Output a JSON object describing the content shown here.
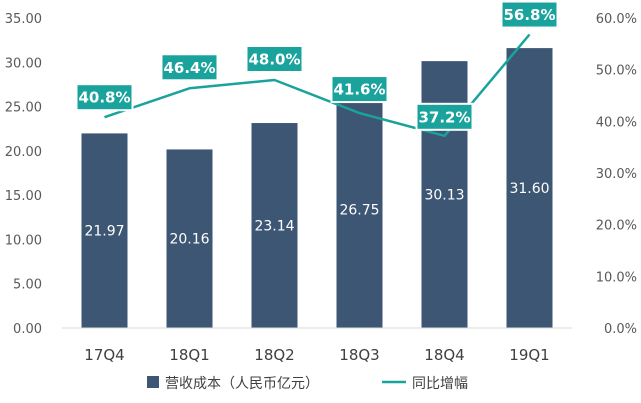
{
  "chart_data": {
    "type": "bar+line",
    "categories": [
      "17Q4",
      "18Q1",
      "18Q2",
      "18Q3",
      "18Q4",
      "19Q1"
    ],
    "series": [
      {
        "name": "营收成本（人民币亿元）",
        "type": "bar",
        "axis": "left",
        "values": [
          21.97,
          20.16,
          23.14,
          26.75,
          30.13,
          31.6
        ],
        "value_labels": [
          "21.97",
          "20.16",
          "23.14",
          "26.75",
          "30.13",
          "31.60"
        ],
        "color": "#3d5673"
      },
      {
        "name": "同比增幅",
        "type": "line",
        "axis": "right",
        "values": [
          40.8,
          46.4,
          48.0,
          41.6,
          37.2,
          56.8
        ],
        "value_labels": [
          "40.8%",
          "46.4%",
          "48.0%",
          "41.6%",
          "37.2%",
          "56.8%"
        ],
        "color": "#1aa39c"
      }
    ],
    "y_left": {
      "ylim": [
        0,
        35
      ],
      "ticks": [
        0,
        5,
        10,
        15,
        20,
        25,
        30,
        35
      ],
      "tick_labels": [
        "0.00",
        "5.00",
        "10.00",
        "15.00",
        "20.00",
        "25.00",
        "30.00",
        "35.00"
      ]
    },
    "y_right": {
      "ylim": [
        0,
        60
      ],
      "ticks": [
        0,
        10,
        20,
        30,
        40,
        50,
        60
      ],
      "tick_labels": [
        "0.0%",
        "10.0%",
        "20.0%",
        "30.0%",
        "40.0%",
        "50.0%",
        "60.0%"
      ]
    },
    "grid": false,
    "legend_position": "bottom",
    "title": "",
    "xlabel": "",
    "colors": {
      "bar": "#3d5673",
      "line": "#1aa39c",
      "axis": "#d9d9d9",
      "text": "#595959"
    }
  }
}
